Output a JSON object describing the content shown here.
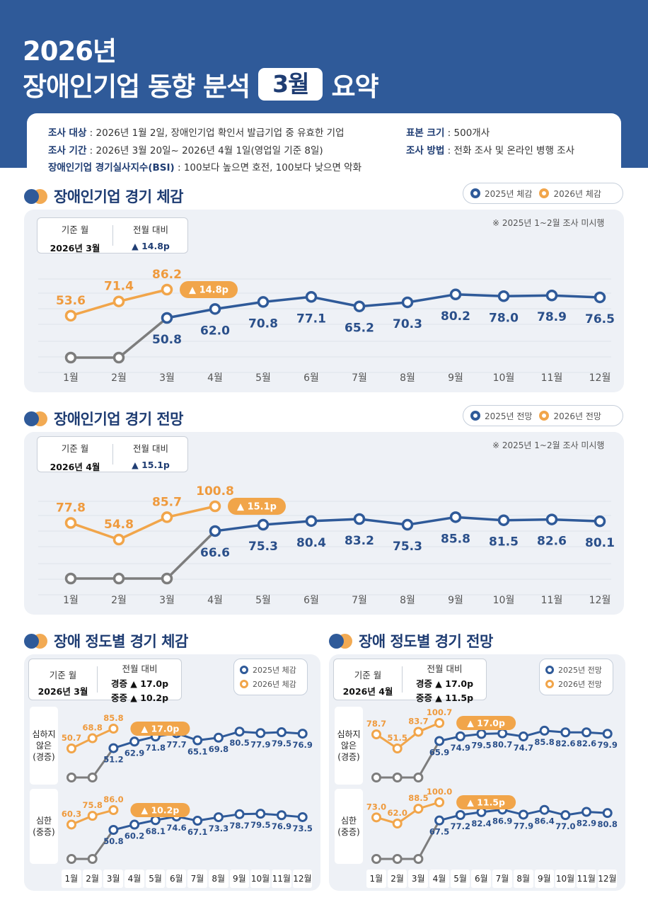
{
  "header": {
    "title_line1": "2026년",
    "title_line2_pre": "장애인기업 동향 분석",
    "title_month": "3월",
    "title_line2_post": "요약"
  },
  "info": {
    "target_label": "조사 대상",
    "target_value": " : 2026년 1월 2일, 장애인기업 확인서 발급기업 중 유효한 기업",
    "period_label": "조사 기간",
    "period_value": " : 2026년 3월 20일~ 2026년 4월 1일(영업일 기준 8일)",
    "bsi_label": "장애인기업 경기실사지수(BSI)",
    "bsi_value": " : 100보다 높으면 호전, 100보다 낮으면 악화",
    "sample_label": "표본 크기",
    "sample_value": " : 500개사",
    "method_label": "조사 방법",
    "method_value": " : 전화 조사 및 온라인 병행 조사"
  },
  "colors": {
    "navy": "#2f5a99",
    "orange": "#f1a54a",
    "gray": "#7d7d7d",
    "panel": "#eef1f6"
  },
  "months": [
    "1월",
    "2월",
    "3월",
    "4월",
    "5월",
    "6월",
    "7월",
    "8월",
    "9월",
    "10월",
    "11월",
    "12월"
  ],
  "sec1": {
    "title": "장애인기업 경기 체감",
    "legend_a": "2025년 체감",
    "legend_b": "2026년 체감",
    "base_label": "기준 월",
    "base_value": "2026년 3월",
    "diff_label": "전월 대비",
    "diff_value": "▲ 14.8p",
    "note": "※ 2025년 1~2월 조사 미시행",
    "badge": "▲ 14.8p"
  },
  "sec2": {
    "title": "장애인기업 경기 전망",
    "legend_a": "2025년 전망",
    "legend_b": "2026년 전망",
    "base_label": "기준 월",
    "base_value": "2026년 4월",
    "diff_label": "전월 대비",
    "diff_value": "▲ 15.1p",
    "note": "※ 2025년 1~2월 조사 미시행",
    "badge": "▲ 15.1p"
  },
  "sec3": {
    "title": "장애 정도별 경기 체감",
    "legend_a": "2025년 체감",
    "legend_b": "2026년 체감",
    "base_label": "기준 월",
    "base_value": "2026년 3월",
    "diff_label": "전월 대비",
    "diff_mild": "경증 ▲ 17.0p",
    "diff_severe": "중증 ▲ 10.2p",
    "row1_label": "심하지 않은 (경증)",
    "row2_label": "심한 (중증)",
    "badge1": "▲ 17.0p",
    "badge2": "▲ 10.2p"
  },
  "sec4": {
    "title": "장애 정도별 경기 전망",
    "legend_a": "2025년 전망",
    "legend_b": "2026년 전망",
    "base_label": "기준 월",
    "base_value": "2026년 4월",
    "diff_label": "전월 대비",
    "diff_mild": "경증 ▲ 17.0p",
    "diff_severe": "중증 ▲ 11.5p",
    "row1_label": "심하지 않은 (경증)",
    "row2_label": "심한 (중증)",
    "badge1": "▲ 17.0p",
    "badge2": "▲ 11.5p"
  },
  "chart_data": [
    {
      "type": "line",
      "title": "장애인기업 경기 체감",
      "categories": [
        "1월",
        "2월",
        "3월",
        "4월",
        "5월",
        "6월",
        "7월",
        "8월",
        "9월",
        "10월",
        "11월",
        "12월"
      ],
      "series": [
        {
          "name": "2025년 체감",
          "values": [
            null,
            null,
            50.8,
            62.0,
            70.8,
            77.1,
            65.2,
            70.3,
            80.2,
            78.0,
            78.9,
            76.5
          ]
        },
        {
          "name": "2026년 체감",
          "values": [
            53.6,
            71.4,
            86.2,
            null,
            null,
            null,
            null,
            null,
            null,
            null,
            null,
            null
          ]
        }
      ]
    },
    {
      "type": "line",
      "title": "장애인기업 경기 전망",
      "categories": [
        "1월",
        "2월",
        "3월",
        "4월",
        "5월",
        "6월",
        "7월",
        "8월",
        "9월",
        "10월",
        "11월",
        "12월"
      ],
      "series": [
        {
          "name": "2025년 전망",
          "values": [
            null,
            null,
            null,
            66.6,
            75.3,
            80.4,
            83.2,
            75.3,
            85.8,
            81.5,
            82.6,
            80.1
          ]
        },
        {
          "name": "2026년 전망",
          "values": [
            77.8,
            54.8,
            85.7,
            100.8,
            null,
            null,
            null,
            null,
            null,
            null,
            null,
            null
          ]
        }
      ]
    },
    {
      "type": "line",
      "title": "장애 정도별 경기 체감 - 심하지 않은 (경증)",
      "categories": [
        "1월",
        "2월",
        "3월",
        "4월",
        "5월",
        "6월",
        "7월",
        "8월",
        "9월",
        "10월",
        "11월",
        "12월"
      ],
      "series": [
        {
          "name": "2025년 체감",
          "values": [
            null,
            null,
            51.2,
            62.9,
            71.8,
            77.7,
            65.1,
            69.8,
            80.5,
            77.9,
            79.5,
            76.9
          ]
        },
        {
          "name": "2026년 체감",
          "values": [
            50.7,
            68.8,
            85.8,
            null,
            null,
            null,
            null,
            null,
            null,
            null,
            null,
            null
          ]
        }
      ]
    },
    {
      "type": "line",
      "title": "장애 정도별 경기 체감 - 심한 (중증)",
      "categories": [
        "1월",
        "2월",
        "3월",
        "4월",
        "5월",
        "6월",
        "7월",
        "8월",
        "9월",
        "10월",
        "11월",
        "12월"
      ],
      "series": [
        {
          "name": "2025년 체감",
          "values": [
            null,
            null,
            50.8,
            60.2,
            68.1,
            74.6,
            67.1,
            73.3,
            78.7,
            79.5,
            76.9,
            73.5
          ]
        },
        {
          "name": "2026년 체감",
          "values": [
            60.3,
            75.8,
            86.0,
            null,
            null,
            null,
            null,
            null,
            null,
            null,
            null,
            null
          ]
        }
      ]
    },
    {
      "type": "line",
      "title": "장애 정도별 경기 전망 - 심하지 않은 (경증)",
      "categories": [
        "1월",
        "2월",
        "3월",
        "4월",
        "5월",
        "6월",
        "7월",
        "8월",
        "9월",
        "10월",
        "11월",
        "12월"
      ],
      "series": [
        {
          "name": "2025년 전망",
          "values": [
            null,
            null,
            null,
            65.9,
            74.9,
            79.5,
            80.7,
            74.7,
            85.8,
            82.6,
            82.6,
            79.9
          ]
        },
        {
          "name": "2026년 전망",
          "values": [
            78.7,
            51.5,
            83.7,
            100.7,
            null,
            null,
            null,
            null,
            null,
            null,
            null,
            null
          ]
        }
      ]
    },
    {
      "type": "line",
      "title": "장애 정도별 경기 전망 - 심한 (중증)",
      "categories": [
        "1월",
        "2월",
        "3월",
        "4월",
        "5월",
        "6월",
        "7월",
        "8월",
        "9월",
        "10월",
        "11월",
        "12월"
      ],
      "series": [
        {
          "name": "2025년 전망",
          "values": [
            null,
            null,
            null,
            67.5,
            77.2,
            82.4,
            86.9,
            77.9,
            86.4,
            77.0,
            82.9,
            80.8
          ]
        },
        {
          "name": "2026년 전망",
          "values": [
            73.0,
            62.0,
            88.5,
            100.0,
            null,
            null,
            null,
            null,
            null,
            null,
            null,
            null
          ]
        }
      ]
    }
  ]
}
